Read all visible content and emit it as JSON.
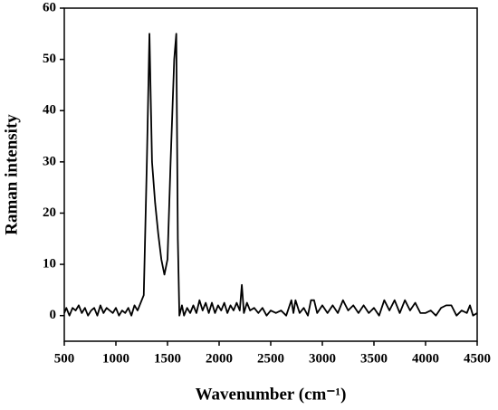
{
  "chart_data": {
    "type": "line",
    "x_label": "Wavenumber (cm⁻¹)",
    "y_label": "Raman intensity",
    "x": [
      500,
      520,
      550,
      580,
      610,
      640,
      670,
      700,
      730,
      760,
      790,
      820,
      850,
      880,
      910,
      940,
      970,
      1000,
      1030,
      1060,
      1090,
      1120,
      1150,
      1180,
      1210,
      1240,
      1270,
      1300,
      1325,
      1350,
      1380,
      1410,
      1440,
      1470,
      1500,
      1530,
      1565,
      1585,
      1600,
      1615,
      1640,
      1660,
      1690,
      1720,
      1750,
      1780,
      1810,
      1840,
      1870,
      1900,
      1930,
      1960,
      1990,
      2020,
      2050,
      2080,
      2110,
      2140,
      2170,
      2200,
      2220,
      2240,
      2270,
      2300,
      2340,
      2380,
      2420,
      2460,
      2500,
      2550,
      2600,
      2650,
      2700,
      2720,
      2740,
      2780,
      2820,
      2860,
      2890,
      2920,
      2950,
      3000,
      3050,
      3100,
      3150,
      3200,
      3250,
      3300,
      3350,
      3400,
      3450,
      3500,
      3550,
      3600,
      3650,
      3700,
      3750,
      3800,
      3850,
      3900,
      3950,
      4000,
      4050,
      4100,
      4150,
      4200,
      4250,
      4300,
      4350,
      4400,
      4430,
      4460,
      4500
    ],
    "values": [
      0.5,
      1.5,
      0,
      1.5,
      1,
      2,
      0.5,
      1.5,
      0,
      1,
      1.5,
      0,
      2,
      0.5,
      1.5,
      1,
      0.5,
      1.5,
      0,
      1,
      0.5,
      1.5,
      0,
      2,
      1,
      2.5,
      4,
      30,
      55,
      30,
      22,
      16,
      11,
      8,
      11,
      30,
      50,
      55,
      15,
      0,
      2,
      0,
      1.5,
      0.5,
      2,
      0.5,
      3,
      1,
      2.5,
      0.5,
      2.5,
      0.5,
      2,
      1,
      2.5,
      0.5,
      2,
      1,
      2.5,
      1,
      6,
      0.5,
      2.5,
      1,
      1.5,
      0.5,
      1.5,
      0,
      1,
      0.5,
      1,
      0,
      3,
      0.5,
      3,
      0.5,
      1.5,
      0,
      3,
      3,
      0.5,
      2,
      0.5,
      2,
      0.5,
      3,
      1,
      2,
      0.5,
      2,
      0.5,
      1.5,
      0,
      3,
      1,
      3,
      0.5,
      3,
      1,
      2.5,
      0.5,
      0.5,
      1,
      0,
      1.5,
      2,
      2,
      0,
      1,
      0.5,
      2,
      0,
      0.5
    ],
    "color": "#000000",
    "xlim": [
      500,
      4500
    ],
    "xticks": [
      500,
      1000,
      1500,
      2000,
      2500,
      3000,
      3500,
      4000,
      4500
    ],
    "ylim": [
      -5,
      60
    ],
    "yticks": [
      0,
      10,
      20,
      30,
      40,
      50,
      60
    ]
  }
}
